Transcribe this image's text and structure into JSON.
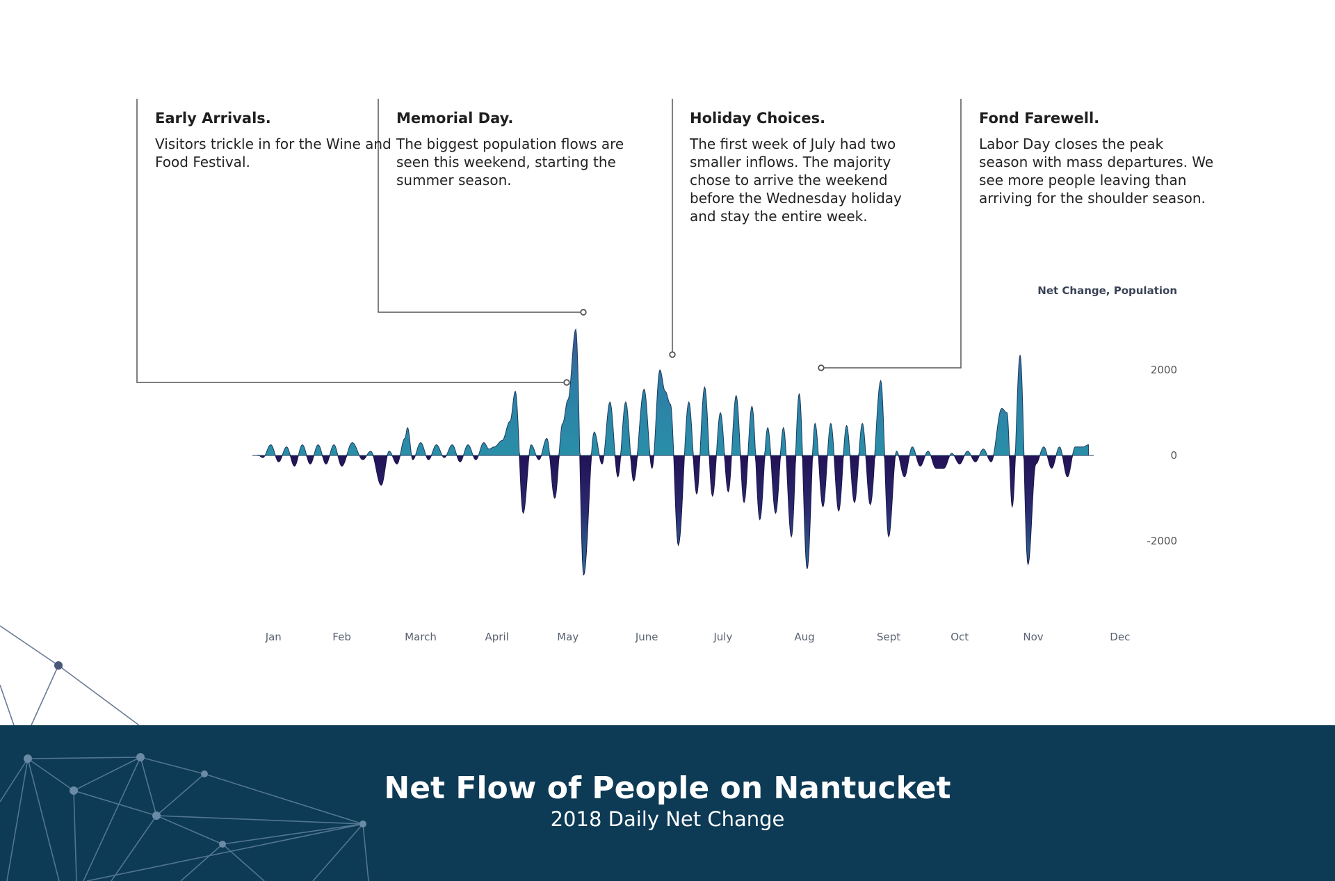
{
  "annotations": [
    {
      "title": "Early Arrivals.",
      "body": "Visitors trickle in for the Wine and Food Festival."
    },
    {
      "title": "Memorial Day.",
      "body": "The biggest population flows are seen this weekend, starting the summer season."
    },
    {
      "title": "Holiday Choices.",
      "body": "The first week of July had two smaller inflows. The majority chose to arrive the weekend before the Wednesday holiday and stay the entire week."
    },
    {
      "title": "Fond Farewell.",
      "body": "Labor Day closes the peak season with mass departures. We see more people leaving than arriving for the shoulder season."
    }
  ],
  "footer": {
    "title": "Net Flow of People on Nantucket",
    "subtitle": "2018 Daily Net Change"
  },
  "colors": {
    "positive_fill": "#2a8aa6",
    "negative_fill": "#231257",
    "footer_bg": "#0d3a55",
    "leader_line": "#555555"
  },
  "chart_data": {
    "type": "area",
    "title": "Net Flow of People on Nantucket",
    "subtitle": "2018 Daily Net Change",
    "ylabel": "Net Change, Population",
    "xlabel": "",
    "ylim": [
      -2800,
      3000
    ],
    "yticks": [
      2000,
      0,
      -2000
    ],
    "month_labels": [
      "Jan",
      "Feb",
      "March",
      "April",
      "May",
      "June",
      "July",
      "Aug",
      "Sept",
      "Oct",
      "Nov",
      "Dec"
    ],
    "month_label_day": [
      8,
      34,
      64,
      93,
      120,
      150,
      179,
      210,
      242,
      269,
      297,
      330
    ],
    "peaks": [
      [
        2,
        10
      ],
      [
        4,
        -50
      ],
      [
        7,
        250
      ],
      [
        10,
        -150
      ],
      [
        13,
        200
      ],
      [
        16,
        -250
      ],
      [
        19,
        250
      ],
      [
        22,
        -200
      ],
      [
        25,
        250
      ],
      [
        28,
        -200
      ],
      [
        31,
        250
      ],
      [
        34,
        -250
      ],
      [
        38,
        300
      ],
      [
        42,
        -100
      ],
      [
        45,
        100
      ],
      [
        49,
        -700
      ],
      [
        52,
        100
      ],
      [
        55,
        -200
      ],
      [
        58,
        400
      ],
      [
        59,
        650
      ],
      [
        61,
        -100
      ],
      [
        64,
        300
      ],
      [
        67,
        -100
      ],
      [
        70,
        250
      ],
      [
        73,
        -50
      ],
      [
        76,
        250
      ],
      [
        79,
        -150
      ],
      [
        82,
        250
      ],
      [
        85,
        -100
      ],
      [
        88,
        300
      ],
      [
        90,
        150
      ],
      [
        92,
        200
      ],
      [
        95,
        350
      ],
      [
        98,
        800
      ],
      [
        100,
        1500
      ],
      [
        103,
        -1350
      ],
      [
        106,
        250
      ],
      [
        109,
        -100
      ],
      [
        112,
        400
      ],
      [
        115,
        -1000
      ],
      [
        118,
        750
      ],
      [
        120,
        1300
      ],
      [
        123,
        2950
      ],
      [
        126,
        -2800
      ],
      [
        130,
        550
      ],
      [
        133,
        -200
      ],
      [
        136,
        1250
      ],
      [
        139,
        -500
      ],
      [
        142,
        1250
      ],
      [
        145,
        -600
      ],
      [
        149,
        1550
      ],
      [
        152,
        -300
      ],
      [
        155,
        2000
      ],
      [
        157,
        1500
      ],
      [
        159,
        1200
      ],
      [
        162,
        -2100
      ],
      [
        166,
        1250
      ],
      [
        169,
        -900
      ],
      [
        172,
        1600
      ],
      [
        175,
        -950
      ],
      [
        178,
        1000
      ],
      [
        181,
        -850
      ],
      [
        184,
        1400
      ],
      [
        187,
        -1100
      ],
      [
        190,
        1150
      ],
      [
        193,
        -1500
      ],
      [
        196,
        650
      ],
      [
        199,
        -1350
      ],
      [
        202,
        650
      ],
      [
        205,
        -1900
      ],
      [
        208,
        1450
      ],
      [
        211,
        -2650
      ],
      [
        214,
        750
      ],
      [
        217,
        -1200
      ],
      [
        220,
        750
      ],
      [
        223,
        -1300
      ],
      [
        226,
        700
      ],
      [
        229,
        -1100
      ],
      [
        232,
        750
      ],
      [
        235,
        -1150
      ],
      [
        239,
        1750
      ],
      [
        242,
        -1900
      ],
      [
        245,
        100
      ],
      [
        248,
        -500
      ],
      [
        251,
        200
      ],
      [
        254,
        -250
      ],
      [
        257,
        100
      ],
      [
        260,
        -300
      ],
      [
        263,
        -300
      ],
      [
        266,
        50
      ],
      [
        269,
        -200
      ],
      [
        272,
        100
      ],
      [
        275,
        -150
      ],
      [
        278,
        150
      ],
      [
        281,
        -150
      ],
      [
        285,
        1100
      ],
      [
        287,
        1000
      ],
      [
        289,
        -1200
      ],
      [
        292,
        2350
      ],
      [
        295,
        -2550
      ],
      [
        298,
        -200
      ],
      [
        301,
        200
      ],
      [
        304,
        -300
      ],
      [
        307,
        200
      ],
      [
        310,
        -500
      ],
      [
        313,
        200
      ],
      [
        316,
        200
      ],
      [
        318,
        250
      ]
    ],
    "annotated_points": [
      {
        "label": "Early Arrivals.",
        "day": 98
      },
      {
        "label": "Memorial Day.",
        "day": 123
      },
      {
        "label": "Holiday Choices.",
        "day": 155
      },
      {
        "label": "Fond Farewell.",
        "day": 244
      }
    ]
  }
}
